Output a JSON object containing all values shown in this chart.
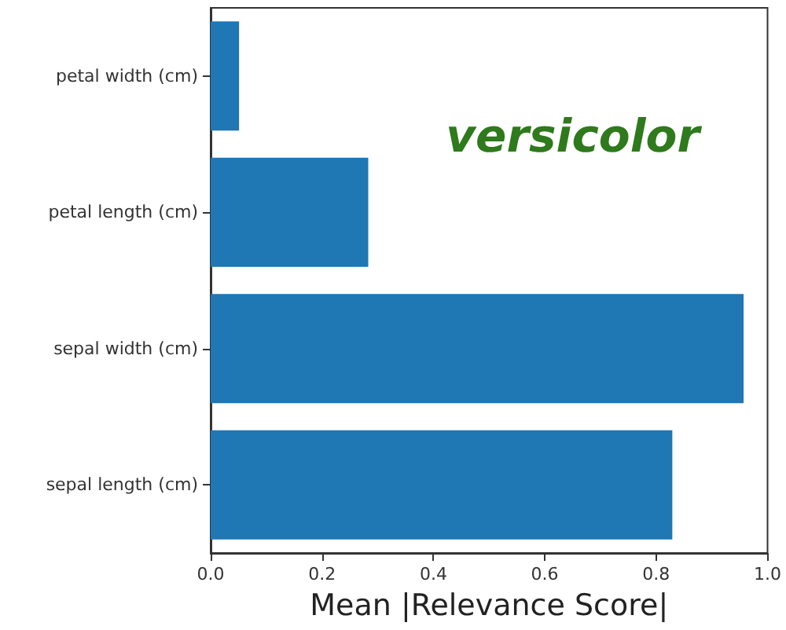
{
  "chart_data": {
    "type": "bar",
    "orientation": "horizontal",
    "xlabel": "Mean |Relevance Score|",
    "annotations": [
      "versicolor"
    ],
    "categories": [
      "petal width (cm)",
      "petal length (cm)",
      "sepal width (cm)",
      "sepal length (cm)"
    ],
    "values": [
      0.051,
      0.283,
      0.957,
      0.829
    ],
    "color": "#1f77b4",
    "xlim": [
      0,
      1.0
    ],
    "xticks": [
      {
        "value": 0,
        "label": "0.0"
      },
      {
        "value": 0.2,
        "label": "0.2"
      },
      {
        "value": 0.4,
        "label": "0.4"
      },
      {
        "value": 0.6,
        "label": "0.6"
      },
      {
        "value": 0.8,
        "label": "0.8"
      },
      {
        "value": 1.0,
        "label": "1.0"
      }
    ],
    "grid": false
  }
}
